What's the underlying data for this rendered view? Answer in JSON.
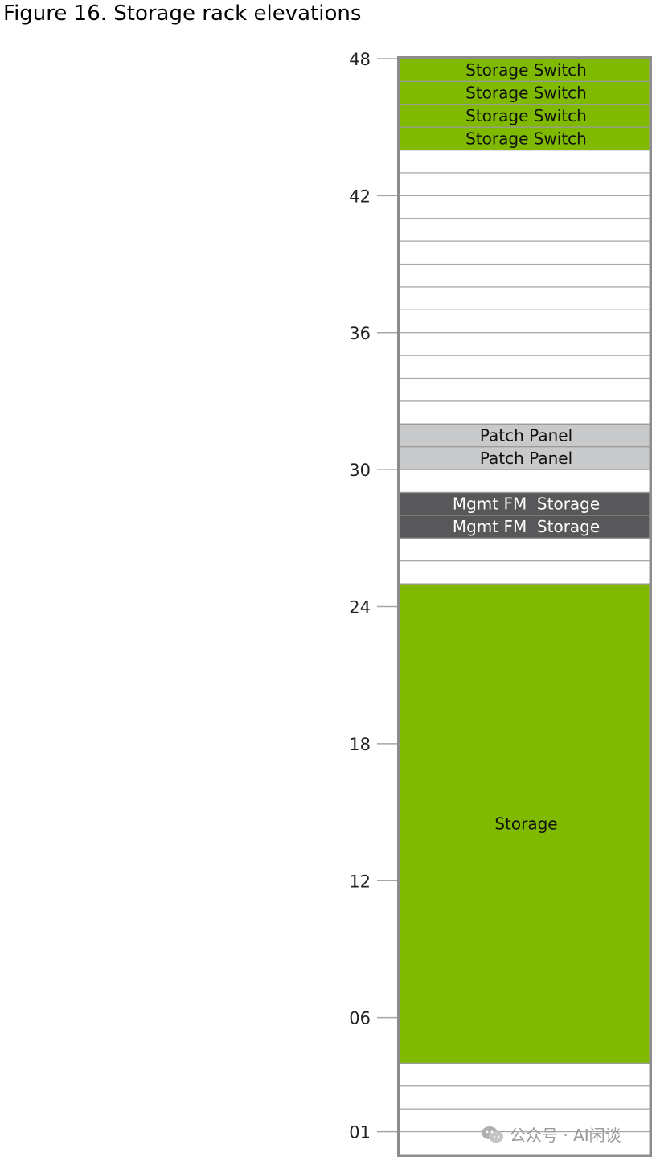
{
  "figure": {
    "caption": "Figure 16. Storage rack elevations"
  },
  "rack": {
    "total_units": 48,
    "tick_labels": [
      "48",
      "42",
      "36",
      "30",
      "24",
      "18",
      "12",
      "06",
      "01"
    ],
    "tick_units": [
      48,
      42,
      36,
      30,
      24,
      18,
      12,
      6,
      1
    ],
    "colors": {
      "green": "#7fba00",
      "gray": "#c8c9cb",
      "dark": "#58585a",
      "empty": "#ffffff",
      "frame": "#8c8c8c",
      "rule": "#a6a6a6"
    },
    "devices": [
      {
        "label": "Storage Switch",
        "top_unit": 48,
        "bottom_unit": 48,
        "color": "green",
        "text_color": "#111111"
      },
      {
        "label": "Storage Switch",
        "top_unit": 47,
        "bottom_unit": 47,
        "color": "green",
        "text_color": "#111111"
      },
      {
        "label": "Storage Switch",
        "top_unit": 46,
        "bottom_unit": 46,
        "color": "green",
        "text_color": "#111111"
      },
      {
        "label": "Storage Switch",
        "top_unit": 45,
        "bottom_unit": 45,
        "color": "green",
        "text_color": "#111111"
      },
      {
        "label": "Patch Panel",
        "top_unit": 32,
        "bottom_unit": 32,
        "color": "gray",
        "text_color": "#111111"
      },
      {
        "label": "Patch Panel",
        "top_unit": 31,
        "bottom_unit": 31,
        "color": "gray",
        "text_color": "#111111"
      },
      {
        "label": "Mgmt FM  Storage",
        "top_unit": 29,
        "bottom_unit": 29,
        "color": "dark",
        "text_color": "#ffffff"
      },
      {
        "label": "Mgmt FM  Storage",
        "top_unit": 28,
        "bottom_unit": 28,
        "color": "dark",
        "text_color": "#ffffff"
      },
      {
        "label": "Storage",
        "top_unit": 25,
        "bottom_unit": 5,
        "color": "green",
        "text_color": "#111111"
      }
    ]
  },
  "watermark": {
    "text": "公众号 · AI闲谈",
    "icon": "wechat-icon"
  }
}
